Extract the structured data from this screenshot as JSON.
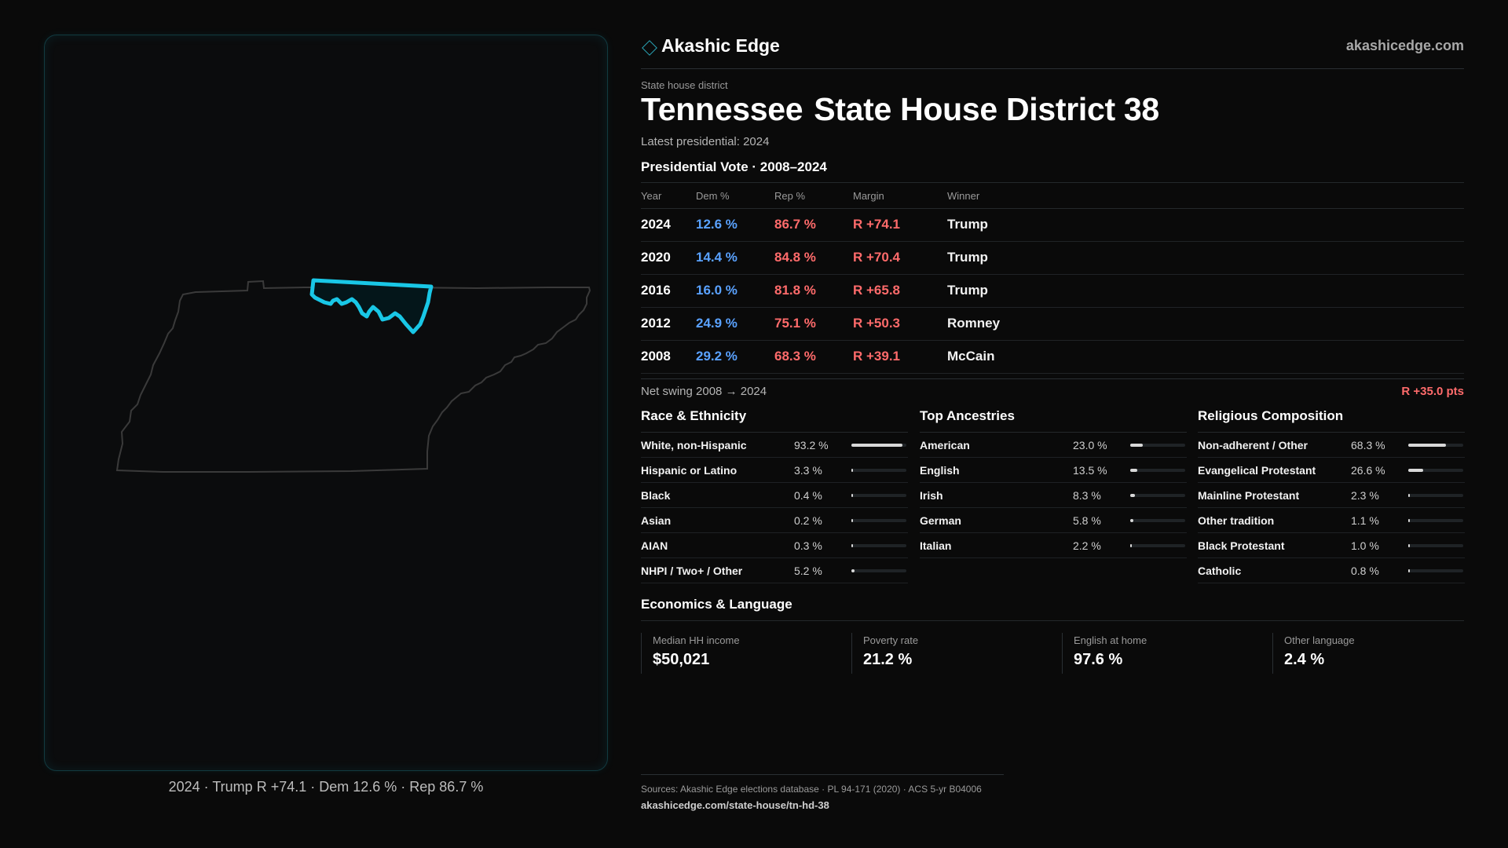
{
  "brand": {
    "name": "Akashic Edge",
    "url": "akashicedge.com",
    "icon": "diamond-icon",
    "accent": "#2aa6b8"
  },
  "header": {
    "eyebrow": "State house district",
    "state": "Tennessee",
    "district": "State House District 38",
    "latest": "Latest presidential: 2024"
  },
  "map": {
    "caption": "2024 · Trump R +74.1 · Dem 12.6 % · Rep 86.7 %",
    "highlight_color": "#19c7e6",
    "outline_color": "#3a3a3a"
  },
  "presidential": {
    "title": "Presidential Vote · 2008–2024",
    "columns": [
      "Year",
      "Dem %",
      "Rep %",
      "Margin",
      "Winner"
    ],
    "rows": [
      {
        "year": "2024",
        "dem": "12.6 %",
        "rep": "86.7 %",
        "margin": "R +74.1",
        "winner": "Trump"
      },
      {
        "year": "2020",
        "dem": "14.4 %",
        "rep": "84.8 %",
        "margin": "R +70.4",
        "winner": "Trump"
      },
      {
        "year": "2016",
        "dem": "16.0 %",
        "rep": "81.8 %",
        "margin": "R +65.8",
        "winner": "Trump"
      },
      {
        "year": "2012",
        "dem": "24.9 %",
        "rep": "75.1 %",
        "margin": "R +50.3",
        "winner": "Romney"
      },
      {
        "year": "2008",
        "dem": "29.2 %",
        "rep": "68.3 %",
        "margin": "R +39.1",
        "winner": "McCain"
      }
    ],
    "colors": {
      "dem": "#5aa2ff",
      "rep": "#ff6b6b"
    }
  },
  "swing": {
    "label": "Net swing 2008 → 2024",
    "value": "R +35.0 pts"
  },
  "race": {
    "title": "Race & Ethnicity",
    "items": [
      {
        "label": "White, non-Hispanic",
        "value": "93.2 %",
        "pct": 93.2
      },
      {
        "label": "Hispanic or Latino",
        "value": "3.3 %",
        "pct": 3.3
      },
      {
        "label": "Black",
        "value": "0.4 %",
        "pct": 0.4
      },
      {
        "label": "Asian",
        "value": "0.2 %",
        "pct": 0.2
      },
      {
        "label": "AIAN",
        "value": "0.3 %",
        "pct": 0.3
      },
      {
        "label": "NHPI / Two+ / Other",
        "value": "5.2 %",
        "pct": 5.2
      }
    ]
  },
  "ancestry": {
    "title": "Top Ancestries",
    "items": [
      {
        "label": "American",
        "value": "23.0 %",
        "pct": 23.0
      },
      {
        "label": "English",
        "value": "13.5 %",
        "pct": 13.5
      },
      {
        "label": "Irish",
        "value": "8.3 %",
        "pct": 8.3
      },
      {
        "label": "German",
        "value": "5.8 %",
        "pct": 5.8
      },
      {
        "label": "Italian",
        "value": "2.2 %",
        "pct": 2.2
      }
    ]
  },
  "religion": {
    "title": "Religious Composition",
    "items": [
      {
        "label": "Non-adherent / Other",
        "value": "68.3 %",
        "pct": 68.3
      },
      {
        "label": "Evangelical Protestant",
        "value": "26.6 %",
        "pct": 26.6
      },
      {
        "label": "Mainline Protestant",
        "value": "2.3 %",
        "pct": 2.3
      },
      {
        "label": "Other tradition",
        "value": "1.1 %",
        "pct": 1.1
      },
      {
        "label": "Black Protestant",
        "value": "1.0 %",
        "pct": 1.0
      },
      {
        "label": "Catholic",
        "value": "0.8 %",
        "pct": 0.8
      }
    ]
  },
  "economics": {
    "title": "Economics & Language",
    "cells": [
      {
        "key": "Median HH income",
        "value": "$50,021"
      },
      {
        "key": "Poverty rate",
        "value": "21.2 %"
      },
      {
        "key": "English at home",
        "value": "97.6 %"
      },
      {
        "key": "Other language",
        "value": "2.4 %"
      }
    ]
  },
  "sources": {
    "text": "Sources: Akashic Edge elections database · PL 94-171 (2020) · ACS 5-yr B04006",
    "url": "akashicedge.com/state-house/tn-hd-38"
  }
}
